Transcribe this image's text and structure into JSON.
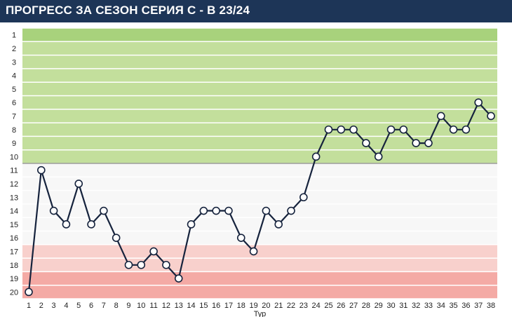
{
  "header": {
    "title": "ПРОГРЕСС ЗА СЕЗОН СЕРИЯ C - B 23/24"
  },
  "chart_data": {
    "type": "line",
    "xlabel": "Тур",
    "ylabel": "",
    "x": [
      1,
      2,
      3,
      4,
      5,
      6,
      7,
      8,
      9,
      10,
      11,
      12,
      13,
      14,
      15,
      16,
      17,
      18,
      19,
      20,
      21,
      22,
      23,
      24,
      25,
      26,
      27,
      28,
      29,
      30,
      31,
      32,
      33,
      34,
      35,
      36,
      37,
      38
    ],
    "y": [
      20,
      11,
      14,
      15,
      12,
      15,
      14,
      16,
      18,
      18,
      17,
      18,
      19,
      15,
      14,
      14,
      14,
      16,
      17,
      14,
      15,
      14,
      13,
      10,
      8,
      8,
      8,
      9,
      10,
      8,
      8,
      9,
      9,
      7,
      8,
      8,
      6,
      7
    ],
    "xlim": [
      1,
      38
    ],
    "ylim": [
      1,
      20
    ],
    "y_reversed": true,
    "zones": [
      {
        "from": 1,
        "to": 10,
        "color": "#c3df9c"
      },
      {
        "from": 11,
        "to": 16,
        "color": "#f7f7f7"
      },
      {
        "from": 17,
        "to": 18,
        "color": "#f8d0cc"
      },
      {
        "from": 19,
        "to": 20,
        "color": "#f4aaa5"
      }
    ],
    "top_band_color": "#a8d27c",
    "line_color": "#16233d",
    "grid": true,
    "legend": "none"
  }
}
